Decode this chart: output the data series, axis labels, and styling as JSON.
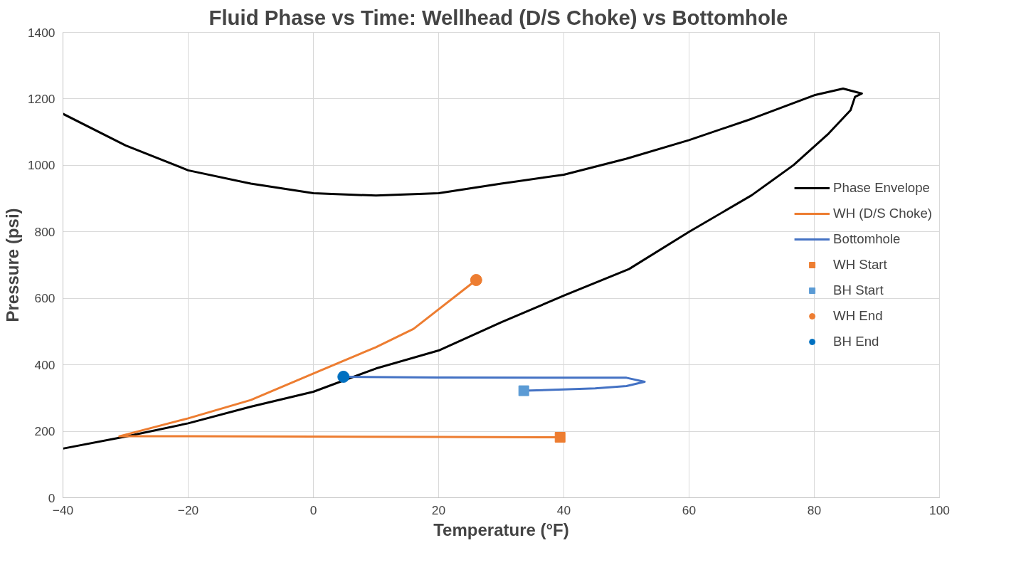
{
  "chart_data": {
    "type": "line",
    "title": "Fluid Phase vs Time:  Wellhead (D/S Choke) vs Bottomhole",
    "xlabel": "Temperature (°F)",
    "ylabel": "Pressure (psi)",
    "xlim": [
      -40,
      100
    ],
    "ylim": [
      0,
      1400
    ],
    "xticks": [
      -40,
      -20,
      0,
      20,
      40,
      60,
      80,
      100
    ],
    "yticks": [
      0,
      200,
      400,
      600,
      800,
      1000,
      1200,
      1400
    ],
    "grid": true,
    "legend": "right",
    "line_style": "solid",
    "series": [
      {
        "name": "Phase Envelope",
        "color": "#000000",
        "x": [
          -40,
          -30,
          -20,
          -10,
          0,
          10,
          20,
          30,
          40,
          50,
          60,
          70,
          80,
          84.6,
          87.6,
          86.5,
          85.8,
          82.3,
          76.7,
          70,
          60,
          50.4,
          40,
          30,
          20,
          10,
          0,
          -10,
          -20,
          -30,
          -40
        ],
        "values": [
          1155,
          1060,
          985,
          945,
          916,
          909,
          916,
          945,
          972,
          1020,
          1076,
          1140,
          1211,
          1231,
          1216,
          1206,
          1166,
          1096,
          1001,
          910,
          800,
          688,
          608,
          528,
          443,
          389,
          319,
          274,
          224,
          184,
          148
        ]
      },
      {
        "name": "WH (D/S Choke)",
        "color": "#ed7d31",
        "x": [
          39.4,
          20,
          0,
          -20,
          -31,
          -20,
          -10,
          0,
          10,
          16,
          26
        ],
        "values": [
          182,
          183,
          184,
          185,
          185,
          239,
          294,
          374,
          453,
          508,
          655
        ]
      },
      {
        "name": "Bottomhole",
        "color": "#4472c4",
        "x": [
          33.6,
          40,
          45,
          50,
          52.9,
          50,
          40,
          20,
          4.8
        ],
        "values": [
          322,
          326,
          329,
          336,
          349,
          361,
          361,
          362,
          364
        ]
      },
      {
        "name": "WH Start",
        "type": "scatter",
        "marker": "square",
        "color": "#ed7d31",
        "x": [
          39.4
        ],
        "values": [
          182
        ]
      },
      {
        "name": "BH Start",
        "type": "scatter",
        "marker": "square",
        "color": "#5b9bd5",
        "x": [
          33.6
        ],
        "values": [
          322
        ]
      },
      {
        "name": "WH End",
        "type": "scatter",
        "marker": "circle",
        "color": "#ed7d31",
        "x": [
          26
        ],
        "values": [
          655
        ]
      },
      {
        "name": "BH End",
        "type": "scatter",
        "marker": "circle",
        "color": "#0070c0",
        "x": [
          4.8
        ],
        "values": [
          364
        ]
      }
    ]
  }
}
